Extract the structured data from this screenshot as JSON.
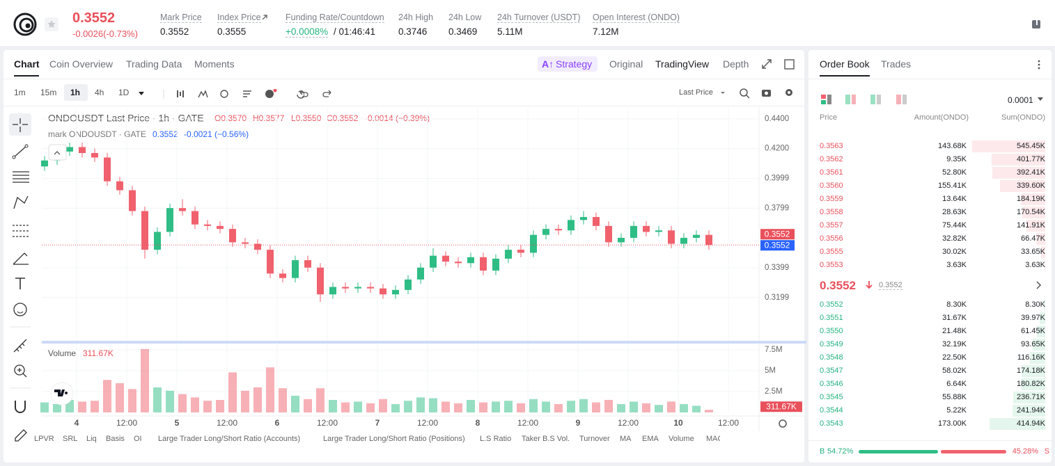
{
  "header": {
    "price": "0.3552",
    "change": "-0.0026(-0.73%)",
    "stats": [
      {
        "label": "Mark Price",
        "value": "0.3552"
      },
      {
        "label": "Index Price",
        "value": "0.3555"
      },
      {
        "label": "Funding Rate/Countdown",
        "value": "+0.0008%",
        "value2": "/ 01:46:41"
      },
      {
        "label": "24h High",
        "value": "0.3746"
      },
      {
        "label": "24h Low",
        "value": "0.3469"
      },
      {
        "label": "24h Turnover (USDT)",
        "value": "5.11M"
      },
      {
        "label": "Open Interest (ONDO)",
        "value": "7.12M"
      }
    ]
  },
  "tabs": [
    "Chart",
    "Coin Overview",
    "Trading Data",
    "Moments"
  ],
  "strategy": "Strategy",
  "views": [
    "Original",
    "TradingView",
    "Depth"
  ],
  "intervals": [
    "1m",
    "15m",
    "1h",
    "4h",
    "1D"
  ],
  "price_type": "Last Price",
  "legend": {
    "line1": "ONDOUSDT Last Price · 1h · GATE",
    "ohlc": [
      "O0.3570",
      "H0.3577",
      "L0.3550",
      "C0.3552",
      "-0.0014 (−0.39%)"
    ],
    "line2": "mark ONDOUSDT · GATE",
    "mark": [
      "0.3552",
      "-0.0021 (−0.56%)"
    ]
  },
  "volume_title": "Volume",
  "chart_data": {
    "type": "candlestick",
    "up_color": "#2ebd85",
    "down_color": "#f0616d",
    "grid": true,
    "ylim": [
      0.2908,
      0.4474
    ],
    "yticks": [
      {
        "value": 0.44,
        "label": "0.4400"
      },
      {
        "value": 0.42,
        "label": "0.4200"
      },
      {
        "value": 0.3999,
        "label": "0.3999"
      },
      {
        "value": 0.3799,
        "label": "0.3799"
      },
      {
        "value": 0.3399,
        "label": "0.3399"
      },
      {
        "value": 0.3199,
        "label": "0.3199"
      }
    ],
    "xticks": [
      "4",
      "12:00",
      "5",
      "12:00",
      "6",
      "12:00",
      "7",
      "12:00",
      "8",
      "12:00",
      "9",
      "12:00",
      "10",
      "12:00"
    ],
    "open": [
      0.408,
      0.412,
      0.418,
      0.421,
      0.417,
      0.414,
      0.398,
      0.392,
      0.378,
      0.352,
      0.364,
      0.38,
      0.378,
      0.369,
      0.368,
      0.366,
      0.357,
      0.356,
      0.352,
      0.336,
      0.333,
      0.345,
      0.34,
      0.322,
      0.327,
      0.326,
      0.327,
      0.326,
      0.322,
      0.325,
      0.332,
      0.34,
      0.348,
      0.344,
      0.343,
      0.347,
      0.338,
      0.346,
      0.352,
      0.35,
      0.362,
      0.366,
      0.365,
      0.372,
      0.374,
      0.368,
      0.357,
      0.36,
      0.368,
      0.364,
      0.365,
      0.356,
      0.36,
      0.362
    ],
    "high": [
      0.415,
      0.421,
      0.424,
      0.424,
      0.42,
      0.417,
      0.401,
      0.395,
      0.381,
      0.367,
      0.383,
      0.386,
      0.381,
      0.372,
      0.371,
      0.369,
      0.36,
      0.359,
      0.355,
      0.339,
      0.348,
      0.348,
      0.343,
      0.33,
      0.33,
      0.33,
      0.33,
      0.329,
      0.328,
      0.335,
      0.343,
      0.353,
      0.351,
      0.347,
      0.35,
      0.35,
      0.349,
      0.355,
      0.355,
      0.365,
      0.369,
      0.369,
      0.375,
      0.378,
      0.377,
      0.371,
      0.363,
      0.371,
      0.371,
      0.368,
      0.368,
      0.363,
      0.365,
      0.365
    ],
    "low": [
      0.405,
      0.409,
      0.415,
      0.414,
      0.411,
      0.395,
      0.389,
      0.375,
      0.346,
      0.349,
      0.361,
      0.375,
      0.366,
      0.365,
      0.363,
      0.354,
      0.353,
      0.349,
      0.333,
      0.33,
      0.33,
      0.337,
      0.317,
      0.319,
      0.323,
      0.323,
      0.323,
      0.319,
      0.319,
      0.322,
      0.329,
      0.337,
      0.341,
      0.34,
      0.34,
      0.335,
      0.335,
      0.343,
      0.347,
      0.347,
      0.359,
      0.362,
      0.362,
      0.369,
      0.365,
      0.354,
      0.354,
      0.357,
      0.361,
      0.361,
      0.353,
      0.353,
      0.357,
      0.352
    ],
    "close": [
      0.412,
      0.418,
      0.421,
      0.417,
      0.414,
      0.398,
      0.392,
      0.378,
      0.352,
      0.364,
      0.38,
      0.378,
      0.369,
      0.368,
      0.366,
      0.357,
      0.356,
      0.352,
      0.336,
      0.333,
      0.345,
      0.34,
      0.322,
      0.327,
      0.326,
      0.327,
      0.326,
      0.322,
      0.325,
      0.332,
      0.34,
      0.348,
      0.344,
      0.343,
      0.347,
      0.338,
      0.346,
      0.352,
      0.35,
      0.362,
      0.366,
      0.365,
      0.372,
      0.374,
      0.368,
      0.357,
      0.36,
      0.368,
      0.364,
      0.365,
      0.356,
      0.36,
      0.362,
      0.3552
    ],
    "volume": [
      1200000,
      1000000,
      1500000,
      1300000,
      1400000,
      3900000,
      3500000,
      2800000,
      7600000,
      3000000,
      2600000,
      2200000,
      1800000,
      1400000,
      1500000,
      4800000,
      2600000,
      3000000,
      5400000,
      2900000,
      2000000,
      1600000,
      2900000,
      1500000,
      1200000,
      1300000,
      1100000,
      1600000,
      1000000,
      1400000,
      1800000,
      1700000,
      1300000,
      1100000,
      1500000,
      1200000,
      1300000,
      1400000,
      1100000,
      1600000,
      1300000,
      1000000,
      1400000,
      1600000,
      1200000,
      1500000,
      1000000,
      1300000,
      1100000,
      900000,
      1300000,
      1000000,
      800000,
      311670
    ],
    "volume_ylim": [
      0,
      8000000
    ],
    "volume_yticks": [
      {
        "value": 2500000,
        "label": "2.5M"
      },
      {
        "value": 5000000,
        "label": "5M"
      },
      {
        "value": 7500000,
        "label": "7.5M"
      }
    ],
    "last_price": {
      "value": 0.3552,
      "label": "0.3552"
    },
    "mark_price": {
      "value": 0.3552,
      "label": "0.3552"
    },
    "last_volume": {
      "value": 311670,
      "label": "311.67K"
    }
  },
  "indicators": [
    "LPVR",
    "SRL",
    "Liq",
    "Basis",
    "OI",
    "Large Trader Long/Short Ratio (Accounts)",
    "Large Trader Long/Short Ratio (Positions)",
    "L.S Ratio",
    "Taker B.S Vol.",
    "Turnover",
    "MA",
    "EMA",
    "Volume",
    "MACD"
  ],
  "order_book": {
    "tabs": [
      "Order Book",
      "Trades"
    ],
    "precision": "0.0001",
    "columns": [
      "Price",
      "Amount(ONDO)",
      "Sum(ONDO)"
    ],
    "asks": [
      [
        "0.3563",
        "143.68K",
        {
          "value": 545450,
          "label": "545.45K"
        }
      ],
      [
        "0.3562",
        "9.35K",
        {
          "value": 401770,
          "label": "401.77K"
        }
      ],
      [
        "0.3561",
        "52.80K",
        {
          "value": 392410,
          "label": "392.41K"
        }
      ],
      [
        "0.3560",
        "155.41K",
        {
          "value": 339600,
          "label": "339.60K"
        }
      ],
      [
        "0.3559",
        "13.64K",
        {
          "value": 184190,
          "label": "184.19K"
        }
      ],
      [
        "0.3558",
        "28.63K",
        {
          "value": 170540,
          "label": "170.54K"
        }
      ],
      [
        "0.3557",
        "75.44K",
        {
          "value": 141910,
          "label": "141.91K"
        }
      ],
      [
        "0.3556",
        "32.82K",
        {
          "value": 66470,
          "label": "66.47K"
        }
      ],
      [
        "0.3555",
        "30.02K",
        {
          "value": 33650,
          "label": "33.65K"
        }
      ],
      [
        "0.3553",
        "3.63K",
        {
          "value": 3630,
          "label": "3.63K"
        }
      ]
    ],
    "mid_price": "0.3552",
    "mid_mark": "0.3552",
    "bids": [
      [
        "0.3552",
        "8.30K",
        {
          "value": 8300,
          "label": "8.30K"
        }
      ],
      [
        "0.3551",
        "31.67K",
        {
          "value": 39970,
          "label": "39.97K"
        }
      ],
      [
        "0.3550",
        "21.48K",
        {
          "value": 61450,
          "label": "61.45K"
        }
      ],
      [
        "0.3549",
        "32.19K",
        {
          "value": 93650,
          "label": "93.65K"
        }
      ],
      [
        "0.3548",
        "22.50K",
        {
          "value": 116160,
          "label": "116.16K"
        }
      ],
      [
        "0.3547",
        "58.02K",
        {
          "value": 174180,
          "label": "174.18K"
        }
      ],
      [
        "0.3546",
        "6.64K",
        {
          "value": 180820,
          "label": "180.82K"
        }
      ],
      [
        "0.3545",
        "55.88K",
        {
          "value": 236710,
          "label": "236.71K"
        }
      ],
      [
        "0.3544",
        "5.22K",
        {
          "value": 241940,
          "label": "241.94K"
        }
      ],
      [
        "0.3543",
        "173.00K",
        {
          "value": 414940,
          "label": "414.94K"
        }
      ]
    ],
    "buy_letter": "B",
    "buy": {
      "value": 54.72,
      "label": "54.72%"
    },
    "sell": {
      "value": 45.28,
      "label": "45.28%"
    },
    "sell_letter": "S"
  }
}
